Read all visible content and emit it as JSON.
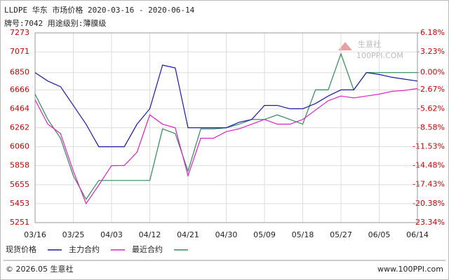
{
  "chart_data": {
    "type": "line",
    "title": "LLDPE 华东 市场价格 2020-03-16 - 2020-06-14",
    "subtitle": "牌号:7042 用途级别:薄膜级",
    "watermark": "生意社",
    "watermark_sub": "100PPI.COM",
    "footer_left": "© 2026.05 生意社",
    "footer_right": "www.100PPI.com",
    "categories": [
      "03/16",
      null,
      null,
      "03/25",
      null,
      null,
      "04/03",
      null,
      null,
      "04/12",
      null,
      null,
      "04/21",
      null,
      null,
      "04/30",
      null,
      null,
      "05/09",
      null,
      null,
      "05/18",
      null,
      null,
      "05/27",
      null,
      null,
      "06/05",
      null,
      null,
      "06/14"
    ],
    "series": [
      {
        "name": "现货价格",
        "color": "#1a1aa6",
        "values": [
          6850,
          6760,
          6700,
          6500,
          6300,
          6060,
          6060,
          6060,
          6300,
          6464,
          6930,
          6900,
          6262,
          6262,
          6262,
          6262,
          6320,
          6350,
          6500,
          6500,
          6464,
          6464,
          6520,
          6600,
          6666,
          6666,
          6850,
          6830,
          6800,
          6780,
          6760
        ]
      },
      {
        "name": "主力合约",
        "color": "#e020c8",
        "values": [
          6560,
          6300,
          6200,
          5800,
          5453,
          5650,
          5858,
          5860,
          6000,
          6400,
          6300,
          6262,
          5750,
          6150,
          6150,
          6220,
          6250,
          6300,
          6350,
          6300,
          6300,
          6350,
          6450,
          6550,
          6600,
          6580,
          6600,
          6620,
          6650,
          6660,
          6680
        ]
      },
      {
        "name": "最近合约",
        "color": "#2e8b57",
        "values": [
          6620,
          6350,
          6150,
          5750,
          5500,
          5700,
          5700,
          5700,
          5700,
          5700,
          6250,
          6200,
          5800,
          6250,
          6250,
          6262,
          6300,
          6350,
          6350,
          6400,
          6350,
          6300,
          6666,
          6666,
          7050,
          6666,
          6850,
          6850,
          6850,
          6850,
          6850
        ]
      }
    ],
    "ylim": [
      5251,
      7273
    ],
    "yticks": [
      7273,
      7071,
      6850,
      6666,
      6464,
      6262,
      6060,
      5858,
      5655,
      5453,
      5251
    ],
    "y2lim": [
      -23.34,
      6.18
    ],
    "y2ticks": [
      {
        "value": 6.18,
        "label": "6.18%"
      },
      {
        "value": 3.23,
        "label": "3.23%"
      },
      {
        "value": 0,
        "label": "0.00%"
      },
      {
        "value": -2.67,
        "label": "-2.67%"
      },
      {
        "value": -5.62,
        "label": "-5.62%"
      },
      {
        "value": -8.58,
        "label": "-8.58%"
      },
      {
        "value": -11.53,
        "label": "-11.53%"
      },
      {
        "value": -14.48,
        "label": "-14.48%"
      },
      {
        "value": -17.43,
        "label": "-17.43%"
      },
      {
        "value": -20.38,
        "label": "-20.38%"
      },
      {
        "value": -23.34,
        "label": "-23.34%"
      }
    ],
    "grid": true,
    "axis_color": "#cc0000"
  }
}
